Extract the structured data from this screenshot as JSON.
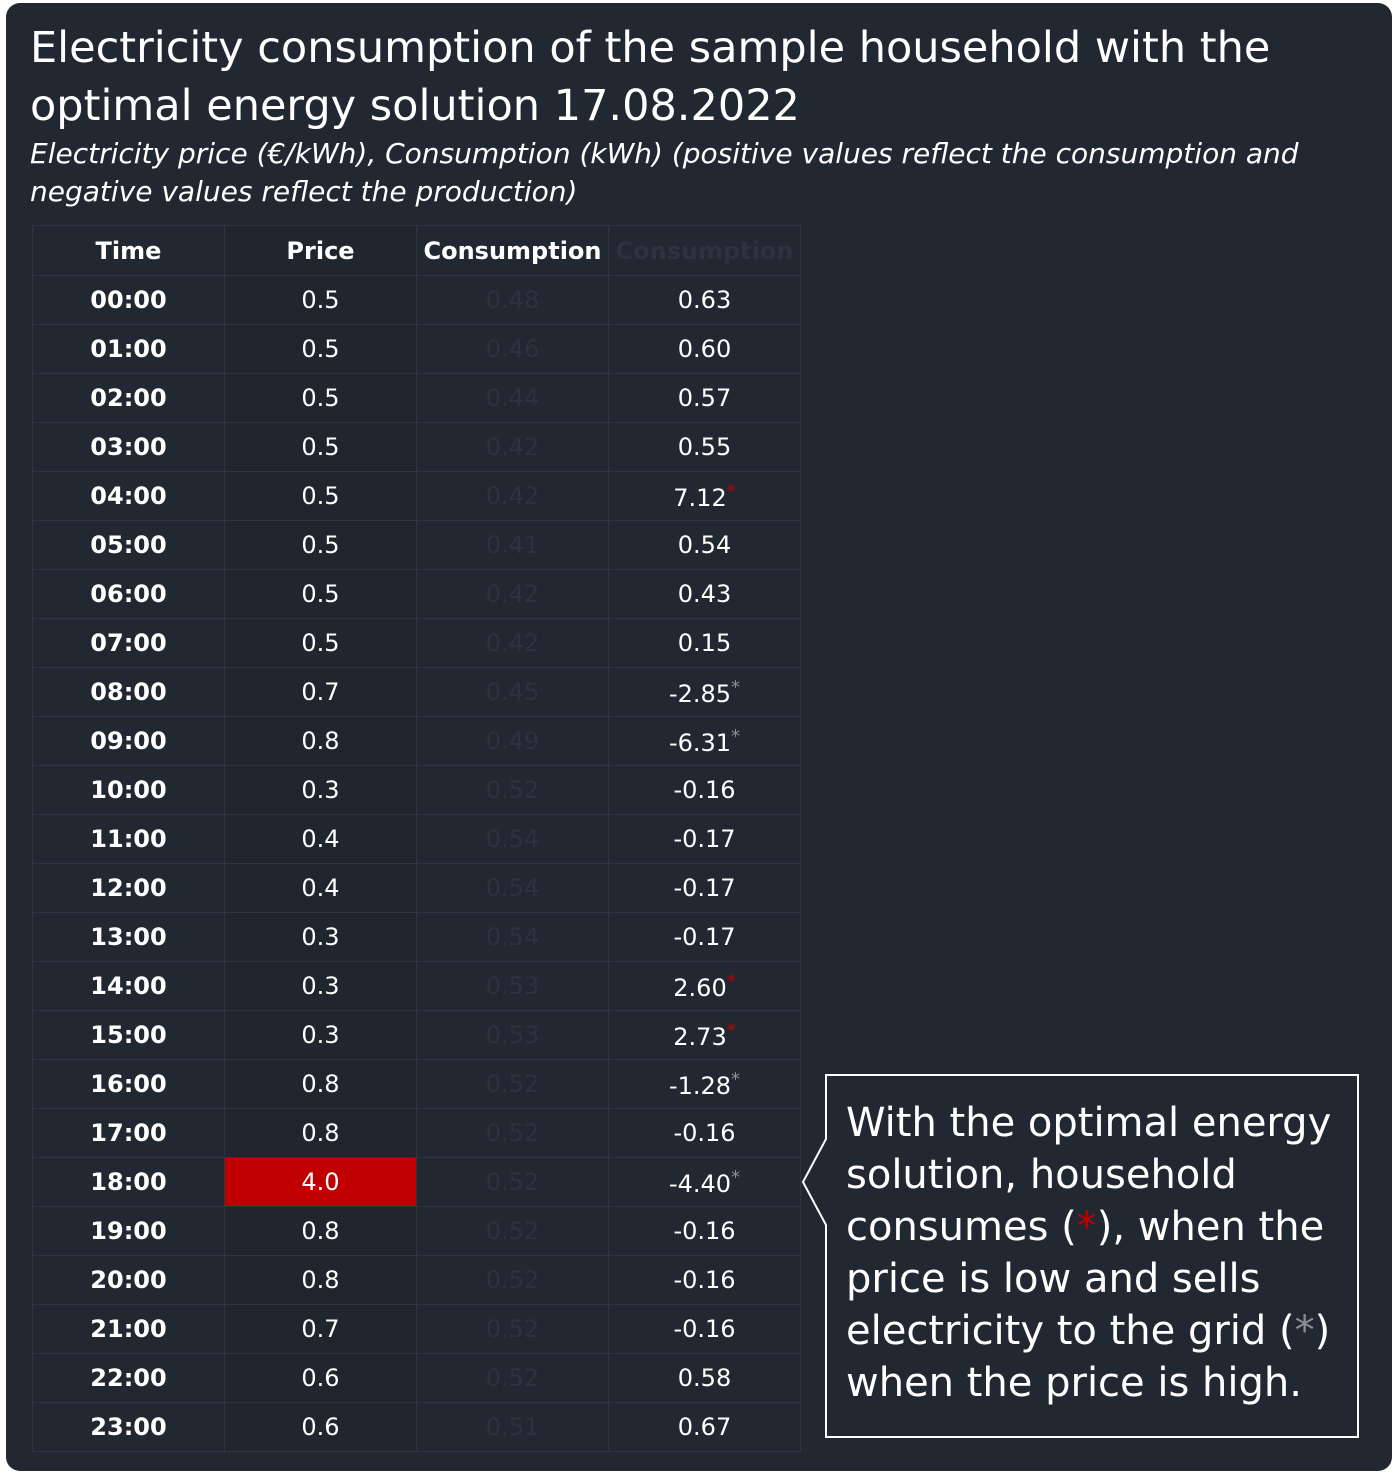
{
  "title": "Electricity consumption of the sample household with the optimal energy solution 17.08.2022",
  "subtitle": "Electricity price (€/kWh), Consumption (kWh) (positive values reflect the consumption and negative values reflect the production)",
  "colors": {
    "background": "#222831",
    "highlight": "#c00000",
    "grey_marker": "#8a8f96"
  },
  "table": {
    "headers": [
      "Time",
      "Price",
      "Consumption",
      "Consumption"
    ],
    "rows": [
      {
        "time": "00:00",
        "price": "0.5",
        "baseline": "0.48",
        "optimal": "0.63",
        "marker": ""
      },
      {
        "time": "01:00",
        "price": "0.5",
        "baseline": "0.46",
        "optimal": "0.60",
        "marker": ""
      },
      {
        "time": "02:00",
        "price": "0.5",
        "baseline": "0.44",
        "optimal": "0.57",
        "marker": ""
      },
      {
        "time": "03:00",
        "price": "0.5",
        "baseline": "0.42",
        "optimal": "0.55",
        "marker": ""
      },
      {
        "time": "04:00",
        "price": "0.5",
        "baseline": "0.42",
        "optimal": "7.12",
        "marker": "red"
      },
      {
        "time": "05:00",
        "price": "0.5",
        "baseline": "0.41",
        "optimal": "0.54",
        "marker": ""
      },
      {
        "time": "06:00",
        "price": "0.5",
        "baseline": "0.42",
        "optimal": "0.43",
        "marker": ""
      },
      {
        "time": "07:00",
        "price": "0.5",
        "baseline": "0.42",
        "optimal": "0.15",
        "marker": ""
      },
      {
        "time": "08:00",
        "price": "0.7",
        "baseline": "0.45",
        "optimal": "-2.85",
        "marker": "grey"
      },
      {
        "time": "09:00",
        "price": "0.8",
        "baseline": "0.49",
        "optimal": "-6.31",
        "marker": "grey"
      },
      {
        "time": "10:00",
        "price": "0.3",
        "baseline": "0.52",
        "optimal": "-0.16",
        "marker": ""
      },
      {
        "time": "11:00",
        "price": "0.4",
        "baseline": "0.54",
        "optimal": "-0.17",
        "marker": ""
      },
      {
        "time": "12:00",
        "price": "0.4",
        "baseline": "0.54",
        "optimal": "-0.17",
        "marker": ""
      },
      {
        "time": "13:00",
        "price": "0.3",
        "baseline": "0.54",
        "optimal": "-0.17",
        "marker": ""
      },
      {
        "time": "14:00",
        "price": "0.3",
        "baseline": "0.53",
        "optimal": "2.60",
        "marker": "red"
      },
      {
        "time": "15:00",
        "price": "0.3",
        "baseline": "0.53",
        "optimal": "2.73",
        "marker": "red"
      },
      {
        "time": "16:00",
        "price": "0.8",
        "baseline": "0.52",
        "optimal": "-1.28",
        "marker": "grey"
      },
      {
        "time": "17:00",
        "price": "0.8",
        "baseline": "0.52",
        "optimal": "-0.16",
        "marker": ""
      },
      {
        "time": "18:00",
        "price": "4.0",
        "baseline": "0.52",
        "optimal": "-4.40",
        "marker": "grey",
        "highlight": true
      },
      {
        "time": "19:00",
        "price": "0.8",
        "baseline": "0.52",
        "optimal": "-0.16",
        "marker": ""
      },
      {
        "time": "20:00",
        "price": "0.8",
        "baseline": "0.52",
        "optimal": "-0.16",
        "marker": ""
      },
      {
        "time": "21:00",
        "price": "0.7",
        "baseline": "0.52",
        "optimal": "-0.16",
        "marker": ""
      },
      {
        "time": "22:00",
        "price": "0.6",
        "baseline": "0.52",
        "optimal": "0.58",
        "marker": ""
      },
      {
        "time": "23:00",
        "price": "0.6",
        "baseline": "0.51",
        "optimal": "0.67",
        "marker": ""
      }
    ]
  },
  "callout": {
    "part1": "With the optimal energy solution, household consumes (",
    "marker1": "*",
    "part2": "), when the price is low and sells electricity to the grid (",
    "marker2": "*",
    "part3": ") when the price is high."
  }
}
